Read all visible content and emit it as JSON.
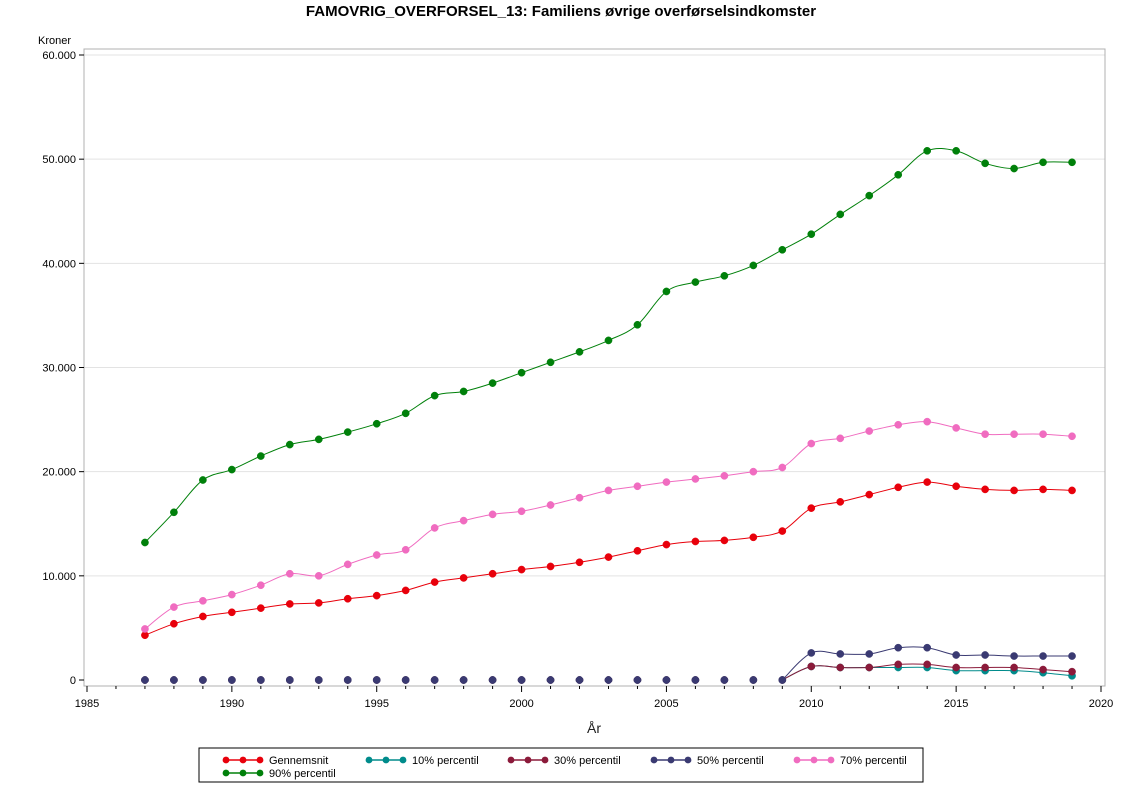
{
  "chart_data": {
    "type": "line",
    "title": "FAMOVRIG_OVERFORSEL_13: Familiens øvrige overførselsindkomster",
    "xlabel": "År",
    "ylabel": "Kroner",
    "xlim": [
      1985,
      2020
    ],
    "ylim": [
      0,
      60000
    ],
    "x_ticks": [
      1985,
      1990,
      1995,
      2000,
      2005,
      2010,
      2015,
      2020
    ],
    "y_ticks": [
      0,
      10000,
      20000,
      30000,
      40000,
      50000,
      60000
    ],
    "y_tick_labels": [
      "0",
      "10.000",
      "20.000",
      "30.000",
      "40.000",
      "50.000",
      "60.000"
    ],
    "grid": "horizontal",
    "legend_position": "bottom",
    "x": [
      1987,
      1988,
      1989,
      1990,
      1991,
      1992,
      1993,
      1994,
      1995,
      1996,
      1997,
      1998,
      1999,
      2000,
      2001,
      2002,
      2003,
      2004,
      2005,
      2006,
      2007,
      2008,
      2009,
      2010,
      2011,
      2012,
      2013,
      2014,
      2015,
      2016,
      2017,
      2018,
      2019
    ],
    "series": [
      {
        "name": "Gennemsnit",
        "color": "#e8000b",
        "values": [
          4300,
          5400,
          6100,
          6500,
          6900,
          7300,
          7400,
          7800,
          8100,
          8600,
          9400,
          9800,
          10200,
          10600,
          10900,
          11300,
          11800,
          12400,
          13000,
          13300,
          13400,
          13700,
          14300,
          16500,
          17100,
          17800,
          18500,
          19000,
          18600,
          18300,
          18200,
          18300,
          18200
        ]
      },
      {
        "name": "10% percentil",
        "color": "#008b8b",
        "values": [
          0,
          0,
          0,
          0,
          0,
          0,
          0,
          0,
          0,
          0,
          0,
          0,
          0,
          0,
          0,
          0,
          0,
          0,
          0,
          0,
          0,
          0,
          0,
          1300,
          1200,
          1200,
          1200,
          1200,
          900,
          900,
          900,
          700,
          400
        ]
      },
      {
        "name": "30% percentil",
        "color": "#8b1a3a",
        "values": [
          0,
          0,
          0,
          0,
          0,
          0,
          0,
          0,
          0,
          0,
          0,
          0,
          0,
          0,
          0,
          0,
          0,
          0,
          0,
          0,
          0,
          0,
          0,
          1300,
          1200,
          1200,
          1500,
          1500,
          1200,
          1200,
          1200,
          1000,
          800
        ]
      },
      {
        "name": "50% percentil",
        "color": "#3a3a72",
        "values": [
          0,
          0,
          0,
          0,
          0,
          0,
          0,
          0,
          0,
          0,
          0,
          0,
          0,
          0,
          0,
          0,
          0,
          0,
          0,
          0,
          0,
          0,
          0,
          2600,
          2500,
          2500,
          3100,
          3100,
          2400,
          2400,
          2300,
          2300,
          2300
        ]
      },
      {
        "name": "70% percentil",
        "color": "#f06cc0",
        "values": [
          4900,
          7000,
          7600,
          8200,
          9100,
          10200,
          10000,
          11100,
          12000,
          12500,
          14600,
          15300,
          15900,
          16200,
          16800,
          17500,
          18200,
          18600,
          19000,
          19300,
          19600,
          20000,
          20400,
          22700,
          23200,
          23900,
          24500,
          24800,
          24200,
          23600,
          23600,
          23600,
          23400
        ]
      },
      {
        "name": "90% percentil",
        "color": "#00800a",
        "values": [
          13200,
          16100,
          19200,
          20200,
          21500,
          22600,
          23100,
          23800,
          24600,
          25600,
          27300,
          27700,
          28500,
          29500,
          30500,
          31500,
          32600,
          34100,
          37300,
          38200,
          38800,
          39800,
          41300,
          42800,
          44700,
          46500,
          48500,
          50800,
          50800,
          49600,
          49100,
          49700,
          49700
        ]
      }
    ]
  }
}
